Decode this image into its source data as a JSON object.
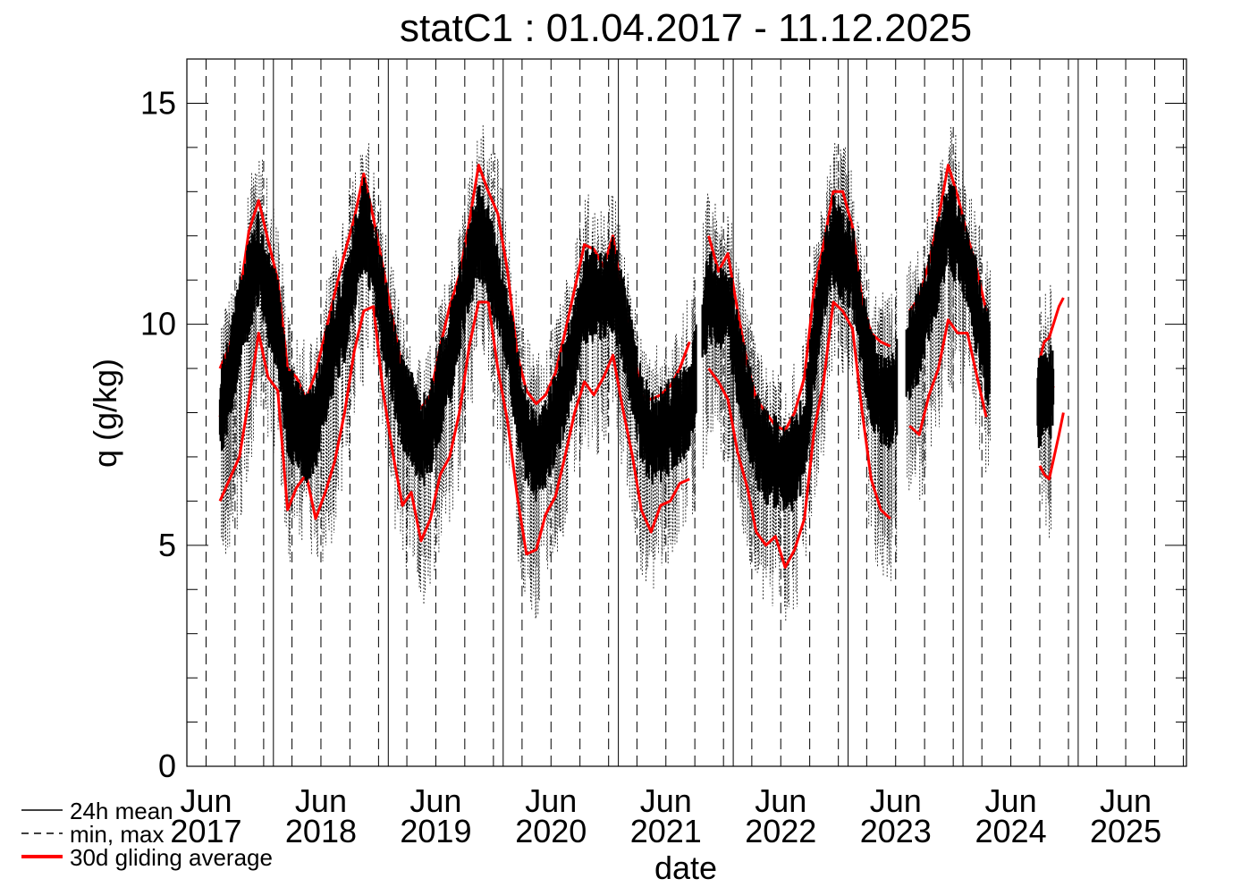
{
  "chart_data": {
    "type": "line",
    "title": "statC1 : 01.04.2017 - 11.12.2025",
    "xlabel": "date",
    "ylabel": "q (g/kg)",
    "xlim": [
      "2017-04-01",
      "2025-12-11"
    ],
    "ylim": [
      0,
      16
    ],
    "yticks": [
      0,
      5,
      10,
      15
    ],
    "x_tick_labels": [
      {
        "date": "2017-06-01",
        "month": "Jun",
        "year": "2017"
      },
      {
        "date": "2018-06-01",
        "month": "Jun",
        "year": "2018"
      },
      {
        "date": "2019-06-01",
        "month": "Jun",
        "year": "2019"
      },
      {
        "date": "2020-06-01",
        "month": "Jun",
        "year": "2020"
      },
      {
        "date": "2021-06-01",
        "month": "Jun",
        "year": "2021"
      },
      {
        "date": "2022-06-01",
        "month": "Jun",
        "year": "2022"
      },
      {
        "date": "2023-06-01",
        "month": "Jun",
        "year": "2023"
      },
      {
        "date": "2024-06-01",
        "month": "Jun",
        "year": "2024"
      },
      {
        "date": "2025-06-01",
        "month": "Jun",
        "year": "2025"
      }
    ],
    "year_gridlines": [
      "2018-01-01",
      "2019-01-01",
      "2020-01-01",
      "2021-01-01",
      "2022-01-01",
      "2023-01-01",
      "2024-01-01",
      "2025-01-01"
    ],
    "quarter_gridlines_dashed": true,
    "legend": {
      "position": "bottom-left",
      "entries": [
        {
          "label": "24h mean",
          "style": "solid",
          "color": "#000000"
        },
        {
          "label": "min, max",
          "style": "dashed",
          "color": "#000000"
        },
        {
          "label": "30d gliding average",
          "style": "solid-thick",
          "color": "#ff0000"
        }
      ]
    },
    "series": [
      {
        "name": "30d gliding average",
        "color": "#ff0000",
        "points": [
          [
            "2017-07-15",
            7.9
          ],
          [
            "2017-08-15",
            8.8
          ],
          [
            "2017-09-15",
            10.0
          ],
          [
            "2017-10-15",
            10.8
          ],
          [
            "2017-11-15",
            11.5
          ],
          [
            "2017-12-15",
            10.6
          ],
          [
            "2018-01-15",
            10.0
          ],
          [
            "2018-02-15",
            8.0
          ],
          [
            "2018-03-15",
            7.8
          ],
          [
            "2018-04-15",
            7.4
          ],
          [
            "2018-05-15",
            7.7
          ],
          [
            "2018-06-15",
            8.8
          ],
          [
            "2018-07-15",
            9.6
          ],
          [
            "2018-08-15",
            10.2
          ],
          [
            "2018-09-15",
            11.3
          ],
          [
            "2018-10-15",
            12.3
          ],
          [
            "2018-11-15",
            11.5
          ],
          [
            "2018-12-15",
            10.3
          ],
          [
            "2019-01-15",
            9.2
          ],
          [
            "2019-02-15",
            8.2
          ],
          [
            "2019-03-15",
            7.9
          ],
          [
            "2019-04-15",
            7.3
          ],
          [
            "2019-05-15",
            7.6
          ],
          [
            "2019-06-15",
            8.5
          ],
          [
            "2019-07-15",
            9.2
          ],
          [
            "2019-08-15",
            10.3
          ],
          [
            "2019-09-15",
            11.3
          ],
          [
            "2019-10-15",
            12.1
          ],
          [
            "2019-11-15",
            11.6
          ],
          [
            "2019-12-15",
            10.8
          ],
          [
            "2020-01-15",
            9.8
          ],
          [
            "2020-02-15",
            8.4
          ],
          [
            "2020-03-15",
            7.4
          ],
          [
            "2020-04-15",
            7.0
          ],
          [
            "2020-05-15",
            7.3
          ],
          [
            "2020-06-15",
            7.9
          ],
          [
            "2020-07-15",
            8.6
          ],
          [
            "2020-08-15",
            9.5
          ],
          [
            "2020-09-15",
            10.6
          ],
          [
            "2020-10-15",
            10.7
          ],
          [
            "2020-11-15",
            10.6
          ],
          [
            "2020-12-15",
            10.9
          ],
          [
            "2021-01-15",
            10.1
          ],
          [
            "2021-02-15",
            9.0
          ],
          [
            "2021-03-15",
            7.9
          ],
          [
            "2021-04-15",
            7.4
          ],
          [
            "2021-05-15",
            7.5
          ],
          [
            "2021-06-15",
            7.7
          ],
          [
            "2021-07-15",
            7.9
          ],
          [
            "2021-08-15",
            8.1
          ],
          [
            "2021-10-15",
            10.7
          ],
          [
            "2021-11-15",
            10.3
          ],
          [
            "2021-12-15",
            10.5
          ],
          [
            "2022-01-15",
            9.2
          ],
          [
            "2022-02-15",
            8.2
          ],
          [
            "2022-03-15",
            7.4
          ],
          [
            "2022-04-15",
            7.0
          ],
          [
            "2022-05-15",
            6.9
          ],
          [
            "2022-06-15",
            6.7
          ],
          [
            "2022-07-15",
            6.9
          ],
          [
            "2022-08-15",
            7.4
          ],
          [
            "2022-09-15",
            9.5
          ],
          [
            "2022-10-15",
            11.0
          ],
          [
            "2022-11-15",
            11.9
          ],
          [
            "2022-12-15",
            11.5
          ],
          [
            "2023-01-15",
            11.3
          ],
          [
            "2023-02-15",
            9.8
          ],
          [
            "2023-03-15",
            8.8
          ],
          [
            "2023-04-15",
            8.3
          ],
          [
            "2023-05-15",
            8.2
          ],
          [
            "2023-07-15",
            9.3
          ],
          [
            "2023-08-15",
            9.8
          ],
          [
            "2023-09-15",
            10.6
          ],
          [
            "2023-10-15",
            11.4
          ],
          [
            "2023-11-15",
            12.3
          ],
          [
            "2023-12-15",
            11.9
          ],
          [
            "2024-01-15",
            11.3
          ],
          [
            "2024-02-15",
            10.3
          ],
          [
            "2024-03-15",
            9.3
          ],
          [
            "2024-09-01",
            8.2
          ],
          [
            "2024-09-15",
            8.5
          ],
          [
            "2024-10-01",
            8.4
          ],
          [
            "2024-10-15",
            8.6
          ]
        ]
      },
      {
        "name": "30d gliding average max",
        "color": "#ff0000",
        "points": [
          [
            "2017-07-15",
            9.0
          ],
          [
            "2017-08-15",
            9.5
          ],
          [
            "2017-09-15",
            10.6
          ],
          [
            "2017-10-15",
            12.1
          ],
          [
            "2017-11-15",
            12.8
          ],
          [
            "2017-12-15",
            11.9
          ],
          [
            "2018-01-15",
            11.0
          ],
          [
            "2018-02-15",
            9.0
          ],
          [
            "2018-03-15",
            8.8
          ],
          [
            "2018-04-15",
            8.3
          ],
          [
            "2018-05-15",
            8.9
          ],
          [
            "2018-06-15",
            9.8
          ],
          [
            "2018-07-15",
            10.7
          ],
          [
            "2018-08-15",
            11.6
          ],
          [
            "2018-09-15",
            12.4
          ],
          [
            "2018-10-15",
            13.4
          ],
          [
            "2018-11-15",
            12.4
          ],
          [
            "2018-12-15",
            11.3
          ],
          [
            "2019-01-15",
            10.1
          ],
          [
            "2019-02-15",
            9.0
          ],
          [
            "2019-03-15",
            8.2
          ],
          [
            "2019-04-15",
            8.1
          ],
          [
            "2019-05-15",
            8.4
          ],
          [
            "2019-06-15",
            9.5
          ],
          [
            "2019-07-15",
            10.4
          ],
          [
            "2019-08-15",
            11.1
          ],
          [
            "2019-09-15",
            12.3
          ],
          [
            "2019-10-15",
            13.6
          ],
          [
            "2019-11-15",
            13.0
          ],
          [
            "2019-12-15",
            12.5
          ],
          [
            "2020-01-15",
            11.2
          ],
          [
            "2020-02-15",
            9.3
          ],
          [
            "2020-03-15",
            8.5
          ],
          [
            "2020-04-15",
            8.2
          ],
          [
            "2020-05-15",
            8.4
          ],
          [
            "2020-06-15",
            8.9
          ],
          [
            "2020-07-15",
            9.8
          ],
          [
            "2020-08-15",
            10.8
          ],
          [
            "2020-09-15",
            11.8
          ],
          [
            "2020-10-15",
            11.7
          ],
          [
            "2020-11-15",
            11.3
          ],
          [
            "2020-12-15",
            12.0
          ],
          [
            "2021-01-15",
            10.5
          ],
          [
            "2021-02-15",
            9.6
          ],
          [
            "2021-03-15",
            8.4
          ],
          [
            "2021-04-15",
            8.3
          ],
          [
            "2021-05-15",
            8.4
          ],
          [
            "2021-06-15",
            8.6
          ],
          [
            "2021-07-15",
            9.0
          ],
          [
            "2021-08-15",
            9.6
          ],
          [
            "2021-10-15",
            12.0
          ],
          [
            "2021-11-15",
            11.2
          ],
          [
            "2021-12-15",
            11.6
          ],
          [
            "2022-01-15",
            10.3
          ],
          [
            "2022-02-15",
            9.1
          ],
          [
            "2022-03-15",
            8.3
          ],
          [
            "2022-04-15",
            8.0
          ],
          [
            "2022-05-15",
            7.7
          ],
          [
            "2022-06-15",
            7.6
          ],
          [
            "2022-07-15",
            8.0
          ],
          [
            "2022-08-15",
            8.8
          ],
          [
            "2022-09-15",
            10.8
          ],
          [
            "2022-10-15",
            11.8
          ],
          [
            "2022-11-15",
            13.0
          ],
          [
            "2022-12-15",
            13.0
          ],
          [
            "2023-01-15",
            12.2
          ],
          [
            "2023-02-15",
            10.5
          ],
          [
            "2023-03-15",
            9.8
          ],
          [
            "2023-04-15",
            9.6
          ],
          [
            "2023-05-15",
            9.5
          ],
          [
            "2023-07-15",
            10.3
          ],
          [
            "2023-08-15",
            10.6
          ],
          [
            "2023-09-15",
            11.4
          ],
          [
            "2023-10-15",
            12.4
          ],
          [
            "2023-11-15",
            13.6
          ],
          [
            "2023-12-15",
            12.9
          ],
          [
            "2024-01-15",
            12.0
          ],
          [
            "2024-02-15",
            11.2
          ],
          [
            "2024-03-15",
            10.3
          ],
          [
            "2024-09-01",
            9.2
          ],
          [
            "2024-09-15",
            9.6
          ],
          [
            "2024-10-01",
            9.7
          ],
          [
            "2024-11-01",
            10.4
          ],
          [
            "2024-11-15",
            10.6
          ]
        ]
      },
      {
        "name": "30d gliding average min",
        "color": "#ff0000",
        "points": [
          [
            "2017-07-15",
            6.0
          ],
          [
            "2017-08-15",
            6.5
          ],
          [
            "2017-09-15",
            7.0
          ],
          [
            "2017-10-15",
            8.3
          ],
          [
            "2017-11-15",
            9.8
          ],
          [
            "2017-12-15",
            8.8
          ],
          [
            "2018-01-15",
            8.5
          ],
          [
            "2018-02-15",
            5.8
          ],
          [
            "2018-03-15",
            6.3
          ],
          [
            "2018-04-15",
            6.6
          ],
          [
            "2018-05-15",
            5.6
          ],
          [
            "2018-06-15",
            6.2
          ],
          [
            "2018-07-15",
            6.9
          ],
          [
            "2018-08-15",
            8.0
          ],
          [
            "2018-09-15",
            9.4
          ],
          [
            "2018-10-15",
            10.3
          ],
          [
            "2018-11-15",
            10.4
          ],
          [
            "2018-12-15",
            8.5
          ],
          [
            "2019-01-15",
            7.1
          ],
          [
            "2019-02-15",
            5.9
          ],
          [
            "2019-03-15",
            6.2
          ],
          [
            "2019-04-15",
            5.1
          ],
          [
            "2019-05-15",
            5.6
          ],
          [
            "2019-06-15",
            6.6
          ],
          [
            "2019-07-15",
            7.0
          ],
          [
            "2019-08-15",
            8.0
          ],
          [
            "2019-09-15",
            9.5
          ],
          [
            "2019-10-15",
            10.5
          ],
          [
            "2019-11-15",
            10.5
          ],
          [
            "2019-12-15",
            9.0
          ],
          [
            "2020-01-15",
            7.8
          ],
          [
            "2020-02-15",
            6.1
          ],
          [
            "2020-03-15",
            4.8
          ],
          [
            "2020-04-15",
            4.9
          ],
          [
            "2020-05-15",
            5.7
          ],
          [
            "2020-06-15",
            6.1
          ],
          [
            "2020-07-15",
            7.0
          ],
          [
            "2020-08-15",
            8.0
          ],
          [
            "2020-09-15",
            8.7
          ],
          [
            "2020-10-15",
            8.4
          ],
          [
            "2020-11-15",
            8.8
          ],
          [
            "2020-12-15",
            9.3
          ],
          [
            "2021-01-15",
            8.1
          ],
          [
            "2021-02-15",
            7.0
          ],
          [
            "2021-03-15",
            5.8
          ],
          [
            "2021-04-15",
            5.3
          ],
          [
            "2021-05-15",
            5.9
          ],
          [
            "2021-06-15",
            6.0
          ],
          [
            "2021-07-15",
            6.4
          ],
          [
            "2021-08-15",
            6.5
          ],
          [
            "2021-10-15",
            9.0
          ],
          [
            "2021-11-15",
            8.7
          ],
          [
            "2021-12-15",
            8.3
          ],
          [
            "2022-01-15",
            7.1
          ],
          [
            "2022-02-15",
            6.3
          ],
          [
            "2022-03-15",
            5.3
          ],
          [
            "2022-04-15",
            5.0
          ],
          [
            "2022-05-15",
            5.2
          ],
          [
            "2022-06-15",
            4.5
          ],
          [
            "2022-07-15",
            4.9
          ],
          [
            "2022-08-15",
            5.6
          ],
          [
            "2022-09-15",
            7.6
          ],
          [
            "2022-10-15",
            8.7
          ],
          [
            "2022-11-15",
            10.5
          ],
          [
            "2022-12-15",
            10.3
          ],
          [
            "2023-01-15",
            9.9
          ],
          [
            "2023-02-15",
            8.0
          ],
          [
            "2023-03-15",
            6.5
          ],
          [
            "2023-04-15",
            5.8
          ],
          [
            "2023-05-15",
            5.6
          ],
          [
            "2023-07-15",
            7.7
          ],
          [
            "2023-08-15",
            7.5
          ],
          [
            "2023-09-15",
            8.4
          ],
          [
            "2023-10-15",
            9.0
          ],
          [
            "2023-11-15",
            10.1
          ],
          [
            "2023-12-15",
            9.8
          ],
          [
            "2024-01-15",
            9.8
          ],
          [
            "2024-02-15",
            8.8
          ],
          [
            "2024-03-15",
            7.9
          ],
          [
            "2024-09-01",
            6.8
          ],
          [
            "2024-09-15",
            6.6
          ],
          [
            "2024-10-01",
            6.5
          ],
          [
            "2024-11-01",
            7.5
          ],
          [
            "2024-11-15",
            8.0
          ]
        ]
      },
      {
        "name": "24h mean",
        "color": "#000000",
        "segments": [
          [
            "2017-07-05",
            "2018-01-25"
          ],
          [
            "2018-01-25",
            "2019-01-25"
          ],
          [
            "2019-01-25",
            "2020-01-25"
          ],
          [
            "2020-01-25",
            "2020-12-25"
          ],
          [
            "2020-12-25",
            "2021-09-05"
          ],
          [
            "2021-09-25",
            "2022-12-25"
          ],
          [
            "2022-12-25",
            "2023-06-05"
          ],
          [
            "2023-07-05",
            "2024-03-25"
          ],
          [
            "2024-08-25",
            "2024-10-25"
          ]
        ]
      }
    ]
  }
}
